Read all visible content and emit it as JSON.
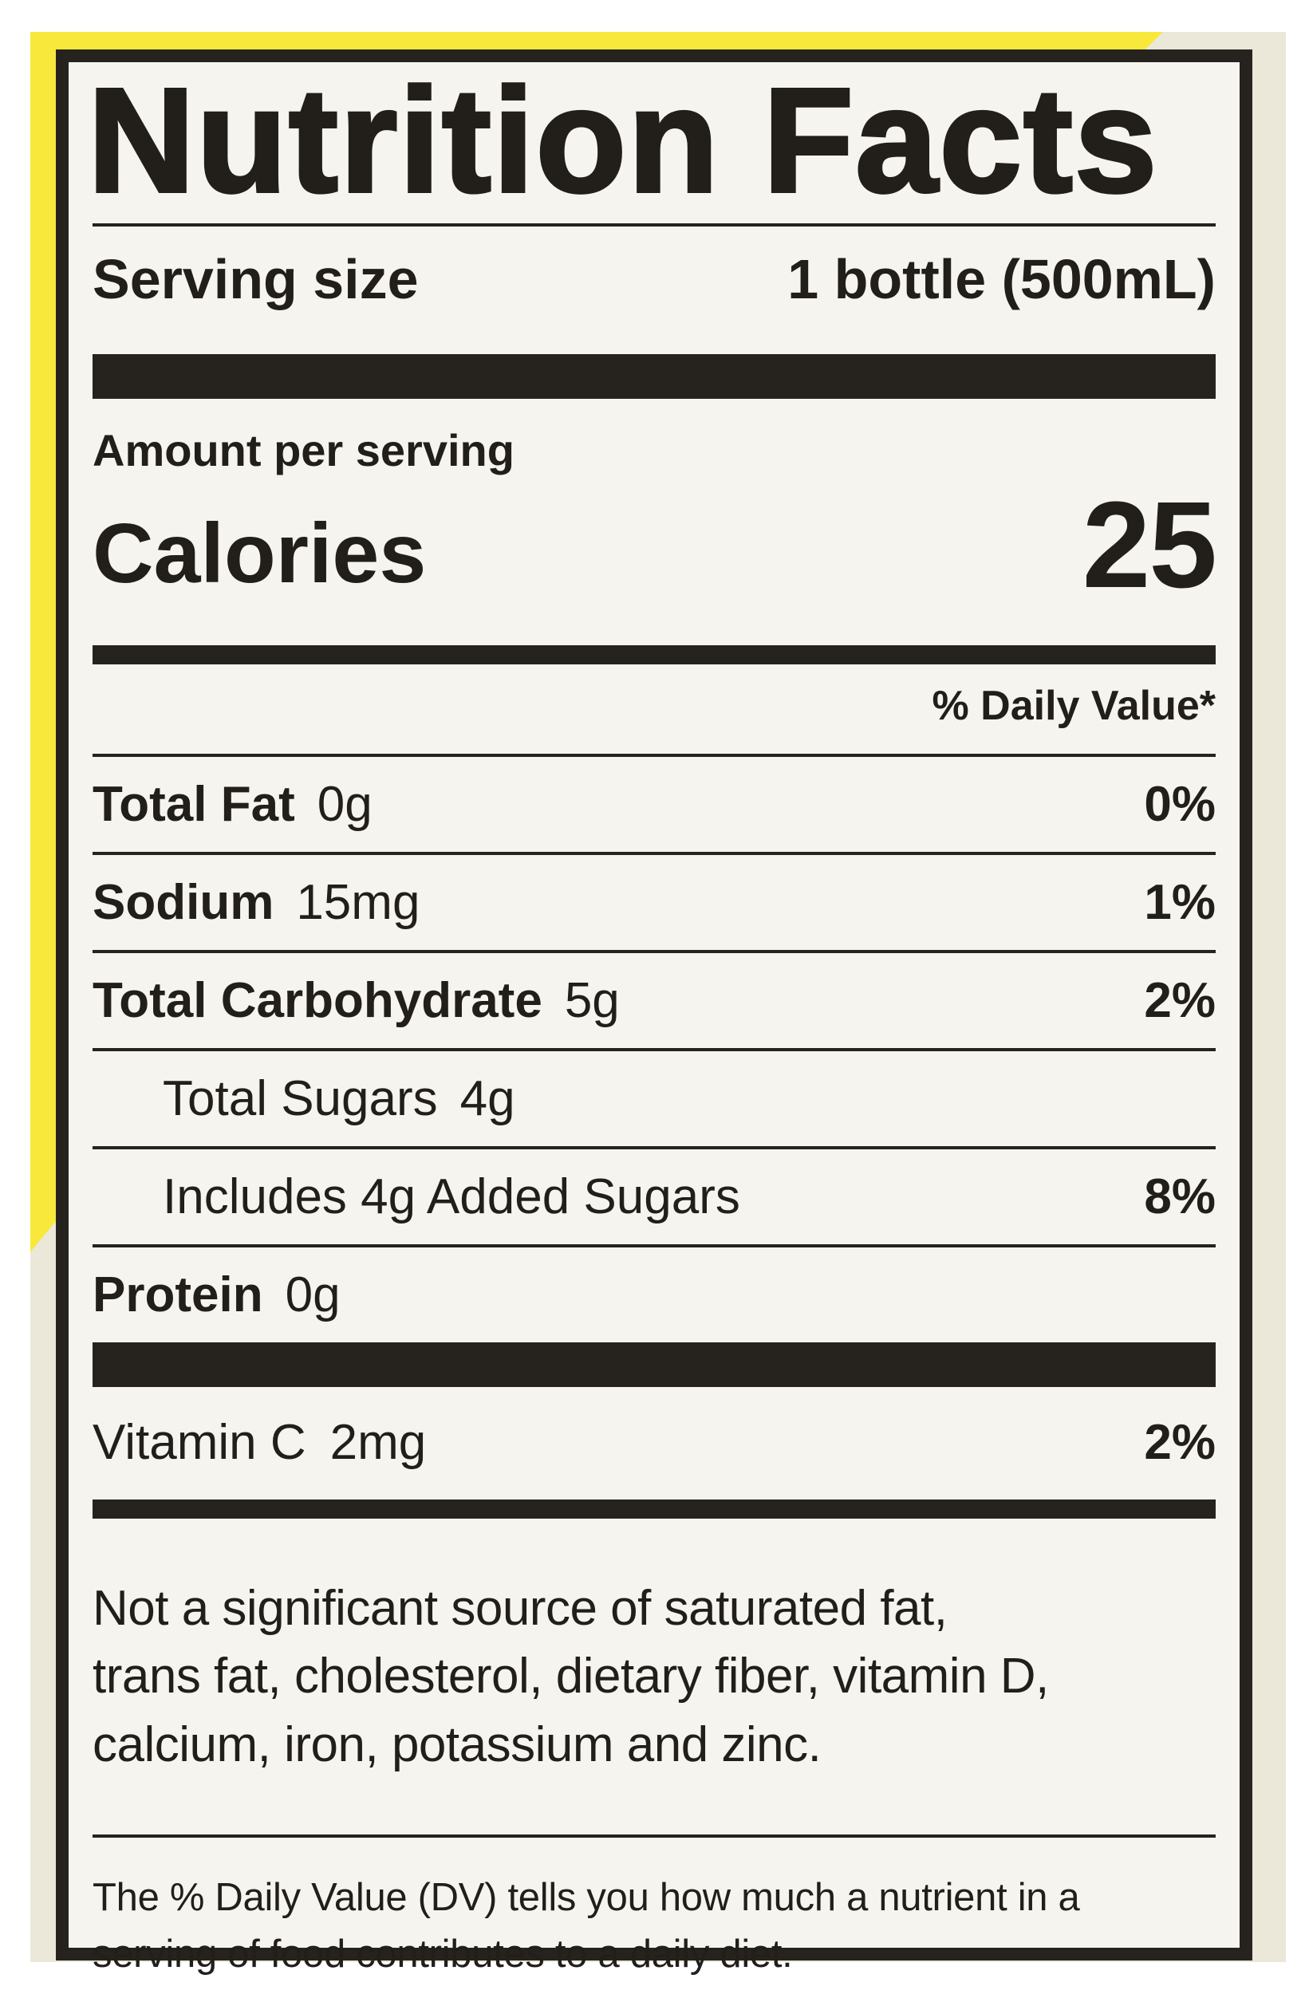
{
  "label": {
    "title": "Nutrition Facts",
    "serving": {
      "label": "Serving size",
      "value": "1 bottle (500mL)"
    },
    "amount_per_serving": "Amount per serving",
    "calories_label": "Calories",
    "calories_value": "25",
    "daily_value_header": "% Daily Value*",
    "rows": [
      {
        "name": "Total Fat",
        "amount": "0g",
        "dv": "0%"
      },
      {
        "name": "Sodium",
        "amount": "15mg",
        "dv": "1%"
      },
      {
        "name": "Total Carbohydrate",
        "amount": "5g",
        "dv": "2%"
      },
      {
        "name": "Total Sugars",
        "amount": "4g",
        "dv": ""
      },
      {
        "name": "Includes 4g Added Sugars",
        "amount": "",
        "dv": "8%"
      },
      {
        "name": "Protein",
        "amount": "0g",
        "dv": ""
      }
    ],
    "vitamins": [
      {
        "name": "Vitamin C",
        "amount": "2mg",
        "dv": "2%"
      }
    ],
    "not_significant_lines": [
      "Not a significant source of saturated fat,",
      "trans fat, cholesterol, dietary fiber, vitamin D,",
      "calcium, iron, potassium and zinc."
    ],
    "footnote_lines": [
      "The % Daily Value (DV) tells you how much a nutrient in a",
      "serving of food contributes to a daily diet."
    ]
  },
  "colors": {
    "bottle_yellow": "#f8e83c",
    "background_cream": "#ebe8d9",
    "label_paper": "#f6f4ef",
    "ink": "#26231f"
  }
}
